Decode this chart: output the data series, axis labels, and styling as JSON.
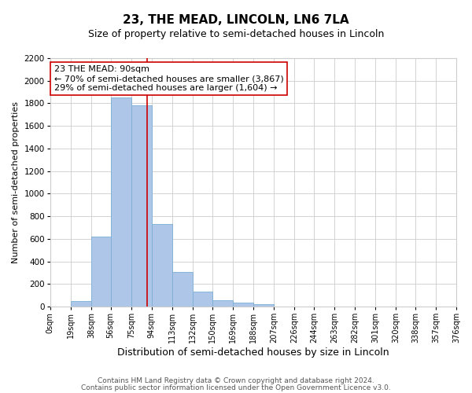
{
  "title": "23, THE MEAD, LINCOLN, LN6 7LA",
  "subtitle": "Size of property relative to semi-detached houses in Lincoln",
  "xlabel": "Distribution of semi-detached houses by size in Lincoln",
  "ylabel": "Number of semi-detached properties",
  "footnote1": "Contains HM Land Registry data © Crown copyright and database right 2024.",
  "footnote2": "Contains public sector information licensed under the Open Government Licence v3.0.",
  "annotation_line1": "23 THE MEAD: 90sqm",
  "annotation_line2": "← 70% of semi-detached houses are smaller (3,867)",
  "annotation_line3": "29% of semi-detached houses are larger (1,604) →",
  "property_sqm": 90,
  "bar_left_edges": [
    0,
    19,
    38,
    56,
    75,
    94,
    113,
    132,
    150,
    169,
    188,
    207,
    226,
    244,
    263,
    282,
    301,
    320,
    338,
    357
  ],
  "bar_widths": [
    19,
    19,
    18,
    19,
    19,
    19,
    19,
    18,
    19,
    19,
    19,
    19,
    18,
    19,
    19,
    19,
    19,
    18,
    19,
    19
  ],
  "bar_heights": [
    0,
    50,
    620,
    1850,
    1780,
    730,
    305,
    135,
    60,
    35,
    20,
    0,
    0,
    0,
    0,
    0,
    0,
    0,
    0,
    0
  ],
  "tick_labels": [
    "0sqm",
    "19sqm",
    "38sqm",
    "56sqm",
    "75sqm",
    "94sqm",
    "113sqm",
    "132sqm",
    "150sqm",
    "169sqm",
    "188sqm",
    "207sqm",
    "226sqm",
    "244sqm",
    "263sqm",
    "282sqm",
    "301sqm",
    "320sqm",
    "338sqm",
    "357sqm",
    "376sqm"
  ],
  "tick_positions": [
    0,
    19,
    38,
    56,
    75,
    94,
    113,
    132,
    150,
    169,
    188,
    207,
    226,
    244,
    263,
    282,
    301,
    320,
    338,
    357,
    376
  ],
  "bar_color": "#aec6e8",
  "bar_edge_color": "#7bafd4",
  "vline_color": "#cc0000",
  "vline_x": 90,
  "ylim": [
    0,
    2200
  ],
  "yticks": [
    0,
    200,
    400,
    600,
    800,
    1000,
    1200,
    1400,
    1600,
    1800,
    2000,
    2200
  ],
  "title_fontsize": 11,
  "subtitle_fontsize": 9,
  "xlabel_fontsize": 9,
  "ylabel_fontsize": 8,
  "annotation_fontsize": 8,
  "tick_fontsize": 7,
  "ytick_fontsize": 7.5,
  "footnote_fontsize": 6.5,
  "background_color": "#ffffff",
  "grid_color": "#cccccc"
}
